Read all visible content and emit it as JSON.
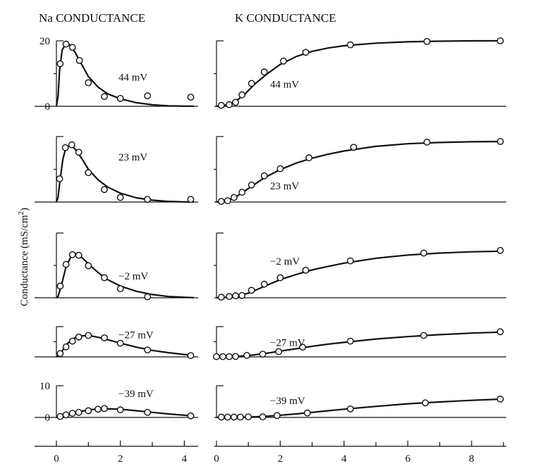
{
  "chart_data": {
    "type": "line",
    "ylabel": "Conductance (mS/cm",
    "ylabel_sup": "2",
    "ylabel_close": ")",
    "na_title": "Na CONDUCTANCE",
    "k_title": "K CONDUCTANCE",
    "na_xlim": [
      0,
      4.3
    ],
    "na_xticks": [
      0,
      2,
      4
    ],
    "k_xlim": [
      0,
      9.0
    ],
    "k_xticks": [
      0,
      2,
      4,
      6,
      8
    ],
    "panels": [
      {
        "voltage": "44 mV",
        "ylim": [
          0,
          20
        ],
        "na_ytick_labels": [
          "0",
          "20"
        ],
        "na_points": [
          [
            0.12,
            13
          ],
          [
            0.3,
            19
          ],
          [
            0.5,
            18
          ],
          [
            0.72,
            14
          ],
          [
            1.0,
            7.2
          ],
          [
            1.5,
            3
          ],
          [
            2.0,
            2.4
          ],
          [
            2.85,
            3.2
          ],
          [
            4.2,
            2.8
          ]
        ],
        "na_curve": [
          [
            0,
            0
          ],
          [
            0.05,
            3
          ],
          [
            0.1,
            11
          ],
          [
            0.18,
            17.2
          ],
          [
            0.3,
            19.2
          ],
          [
            0.45,
            18.6
          ],
          [
            0.6,
            16.2
          ],
          [
            0.8,
            12.6
          ],
          [
            1.0,
            9.1
          ],
          [
            1.3,
            5.9
          ],
          [
            1.6,
            3.8
          ],
          [
            2.0,
            2.3
          ],
          [
            2.5,
            1.1
          ],
          [
            3.0,
            0.45
          ],
          [
            3.5,
            0.15
          ],
          [
            4.0,
            0.05
          ],
          [
            4.3,
            0.02
          ]
        ],
        "k_points": [
          [
            0.15,
            0.3
          ],
          [
            0.4,
            0.5
          ],
          [
            0.6,
            1.2
          ],
          [
            0.8,
            3.5
          ],
          [
            1.1,
            7
          ],
          [
            1.5,
            10.5
          ],
          [
            2.1,
            13.8
          ],
          [
            2.8,
            16.5
          ],
          [
            4.2,
            18.8
          ],
          [
            6.6,
            19.8
          ],
          [
            8.9,
            20
          ]
        ],
        "k_curve": [
          [
            0,
            0
          ],
          [
            0.3,
            0.4
          ],
          [
            0.6,
            1.5
          ],
          [
            0.9,
            3.8
          ],
          [
            1.2,
            6.8
          ],
          [
            1.6,
            10
          ],
          [
            2.0,
            12.8
          ],
          [
            2.5,
            15.2
          ],
          [
            3.0,
            16.8
          ],
          [
            3.5,
            17.8
          ],
          [
            4.0,
            18.5
          ],
          [
            5.0,
            19.3
          ],
          [
            6.0,
            19.7
          ],
          [
            7.0,
            19.9
          ],
          [
            8.0,
            20
          ],
          [
            9.0,
            20
          ]
        ]
      },
      {
        "voltage": "23 mV",
        "ylim": [
          0,
          20
        ],
        "na_ytick_labels": [
          "",
          ""
        ],
        "na_points": [
          [
            0.1,
            7.1
          ],
          [
            0.28,
            16.6
          ],
          [
            0.48,
            17.5
          ],
          [
            0.7,
            15.2
          ],
          [
            1.0,
            9
          ],
          [
            1.5,
            3.8
          ],
          [
            2.0,
            1.4
          ],
          [
            2.85,
            0.8
          ],
          [
            4.2,
            0.8
          ]
        ],
        "na_curve": [
          [
            0,
            0
          ],
          [
            0.05,
            1.4
          ],
          [
            0.1,
            5.5
          ],
          [
            0.2,
            13
          ],
          [
            0.3,
            16.8
          ],
          [
            0.45,
            17.4
          ],
          [
            0.6,
            16
          ],
          [
            0.8,
            13.2
          ],
          [
            1.0,
            10
          ],
          [
            1.3,
            6.8
          ],
          [
            1.6,
            4.6
          ],
          [
            2.0,
            2.7
          ],
          [
            2.5,
            1.3
          ],
          [
            3.0,
            0.55
          ],
          [
            3.5,
            0.2
          ],
          [
            4.0,
            0.05
          ],
          [
            4.3,
            0.02
          ]
        ],
        "k_points": [
          [
            0.15,
            0.2
          ],
          [
            0.35,
            0.4
          ],
          [
            0.55,
            1.4
          ],
          [
            0.8,
            3
          ],
          [
            1.1,
            5.2
          ],
          [
            1.5,
            8
          ],
          [
            2.0,
            10.2
          ],
          [
            2.9,
            13.5
          ],
          [
            4.3,
            16.7
          ],
          [
            6.6,
            18.3
          ],
          [
            8.9,
            18.5
          ]
        ],
        "k_curve": [
          [
            0,
            0
          ],
          [
            0.3,
            0.3
          ],
          [
            0.6,
            1.5
          ],
          [
            1.0,
            4.1
          ],
          [
            1.5,
            7.4
          ],
          [
            2.0,
            9.9
          ],
          [
            2.5,
            11.9
          ],
          [
            3.0,
            13.4
          ],
          [
            3.5,
            14.6
          ],
          [
            4.0,
            15.6
          ],
          [
            5.0,
            17
          ],
          [
            6.0,
            17.8
          ],
          [
            7.0,
            18.2
          ],
          [
            8.0,
            18.4
          ],
          [
            9.0,
            18.5
          ]
        ]
      },
      {
        "voltage": "−2 mV",
        "ylim": [
          0,
          20
        ],
        "na_ytick_labels": [
          "",
          ""
        ],
        "na_points": [
          [
            0.12,
            3.6
          ],
          [
            0.3,
            10.3
          ],
          [
            0.5,
            13.3
          ],
          [
            0.7,
            13.1
          ],
          [
            1.0,
            9.9
          ],
          [
            1.5,
            6.2
          ],
          [
            2.0,
            2.8
          ],
          [
            2.85,
            0.3
          ]
        ],
        "na_curve": [
          [
            0,
            0
          ],
          [
            0.05,
            0.4
          ],
          [
            0.15,
            3.6
          ],
          [
            0.3,
            9.5
          ],
          [
            0.45,
            12.6
          ],
          [
            0.6,
            13.6
          ],
          [
            0.8,
            12.4
          ],
          [
            1.0,
            10.5
          ],
          [
            1.3,
            7.8
          ],
          [
            1.6,
            5.6
          ],
          [
            2.0,
            3.6
          ],
          [
            2.5,
            2.0
          ],
          [
            3.0,
            1.0
          ],
          [
            3.5,
            0.4
          ],
          [
            4.0,
            0.15
          ],
          [
            4.3,
            0.05
          ]
        ],
        "k_points": [
          [
            0.15,
            0.2
          ],
          [
            0.4,
            0.4
          ],
          [
            0.6,
            0.6
          ],
          [
            0.8,
            0.7
          ],
          [
            1.1,
            2.3
          ],
          [
            1.5,
            4.2
          ],
          [
            2.0,
            6.2
          ],
          [
            2.8,
            8.5
          ],
          [
            4.2,
            11.4
          ],
          [
            6.5,
            13.8
          ],
          [
            8.9,
            14.6
          ]
        ],
        "k_curve": [
          [
            0,
            0
          ],
          [
            0.5,
            0.2
          ],
          [
            1.0,
            1.4
          ],
          [
            1.5,
            3.5
          ],
          [
            2.0,
            5.6
          ],
          [
            2.5,
            7.2
          ],
          [
            3.0,
            8.6
          ],
          [
            3.5,
            9.7
          ],
          [
            4.0,
            10.7
          ],
          [
            5.0,
            12.2
          ],
          [
            6.0,
            13.2
          ],
          [
            7.0,
            13.8
          ],
          [
            8.0,
            14.2
          ],
          [
            9.0,
            14.4
          ]
        ]
      },
      {
        "voltage": "−27 mV",
        "ylim": [
          0,
          20
        ],
        "na_ytick_labels": [
          "",
          ""
        ],
        "na_points": [
          [
            0.12,
            2.2
          ],
          [
            0.3,
            6.6
          ],
          [
            0.5,
            10.4
          ],
          [
            0.7,
            13.1
          ],
          [
            1.0,
            14.2
          ],
          [
            1.5,
            12.6
          ],
          [
            2.0,
            9
          ],
          [
            2.85,
            4.6
          ],
          [
            4.2,
            0.9
          ]
        ],
        "na_curve": [
          [
            0,
            0
          ],
          [
            0.1,
            1.4
          ],
          [
            0.2,
            4.5
          ],
          [
            0.35,
            8.9
          ],
          [
            0.5,
            11.8
          ],
          [
            0.7,
            13.6
          ],
          [
            0.9,
            14.1
          ],
          [
            1.1,
            13.8
          ],
          [
            1.4,
            12.5
          ],
          [
            1.7,
            10.8
          ],
          [
            2.0,
            9.1
          ],
          [
            2.5,
            6.4
          ],
          [
            3.0,
            4.3
          ],
          [
            3.5,
            2.8
          ],
          [
            4.0,
            1.6
          ],
          [
            4.3,
            1.1
          ]
        ],
        "k_points": [
          [
            0.0,
            0.2
          ],
          [
            0.2,
            0.2
          ],
          [
            0.4,
            0.2
          ],
          [
            0.6,
            0.3
          ],
          [
            0.95,
            1
          ],
          [
            1.45,
            1.8
          ],
          [
            1.95,
            3.5
          ],
          [
            2.7,
            6.4
          ],
          [
            4.2,
            10.4
          ],
          [
            6.5,
            14.2
          ],
          [
            8.9,
            16.6
          ]
        ],
        "k_curve": [
          [
            0,
            0
          ],
          [
            0.5,
            0.1
          ],
          [
            1.0,
            0.9
          ],
          [
            1.5,
            2.2
          ],
          [
            2.0,
            3.8
          ],
          [
            2.5,
            5.4
          ],
          [
            3.0,
            7
          ],
          [
            3.5,
            8.4
          ],
          [
            4.0,
            9.6
          ],
          [
            5.0,
            11.8
          ],
          [
            6.0,
            13.4
          ],
          [
            7.0,
            14.7
          ],
          [
            8.0,
            15.7
          ],
          [
            9.0,
            16.4
          ]
        ]
      },
      {
        "voltage": "−39 mV",
        "ylim": [
          0,
          10
        ],
        "na_ytick_labels": [
          "0",
          "10"
        ],
        "na_points": [
          [
            0.12,
            0.3
          ],
          [
            0.3,
            0.8
          ],
          [
            0.5,
            1.3
          ],
          [
            0.7,
            1.6
          ],
          [
            1.0,
            2.1
          ],
          [
            1.3,
            2.6
          ],
          [
            1.5,
            2.8
          ],
          [
            2.0,
            2.4
          ],
          [
            2.85,
            1.6
          ],
          [
            4.2,
            0.5
          ]
        ],
        "na_curve": [
          [
            0,
            0
          ],
          [
            0.2,
            0.5
          ],
          [
            0.5,
            1.3
          ],
          [
            0.8,
            2
          ],
          [
            1.1,
            2.5
          ],
          [
            1.4,
            2.7
          ],
          [
            1.7,
            2.7
          ],
          [
            2.0,
            2.6
          ],
          [
            2.5,
            2.1
          ],
          [
            3.0,
            1.6
          ],
          [
            3.5,
            1.1
          ],
          [
            4.0,
            0.7
          ],
          [
            4.3,
            0.5
          ]
        ],
        "k_points": [
          [
            0.15,
            0.1
          ],
          [
            0.35,
            0.1
          ],
          [
            0.55,
            0.1
          ],
          [
            0.75,
            0.1
          ],
          [
            1.0,
            0.2
          ],
          [
            1.45,
            0.2
          ],
          [
            1.9,
            0.6
          ],
          [
            2.85,
            1.4
          ],
          [
            4.2,
            2.7
          ],
          [
            6.55,
            4.6
          ],
          [
            8.9,
            5.8
          ]
        ],
        "k_curve": [
          [
            0,
            0
          ],
          [
            0.5,
            0
          ],
          [
            1.0,
            0.1
          ],
          [
            1.5,
            0.3
          ],
          [
            2.0,
            0.7
          ],
          [
            2.5,
            1.1
          ],
          [
            3.0,
            1.6
          ],
          [
            3.5,
            2.1
          ],
          [
            4.0,
            2.6
          ],
          [
            5.0,
            3.5
          ],
          [
            6.0,
            4.3
          ],
          [
            7.0,
            4.9
          ],
          [
            8.0,
            5.4
          ],
          [
            9.0,
            5.8
          ]
        ]
      }
    ]
  }
}
